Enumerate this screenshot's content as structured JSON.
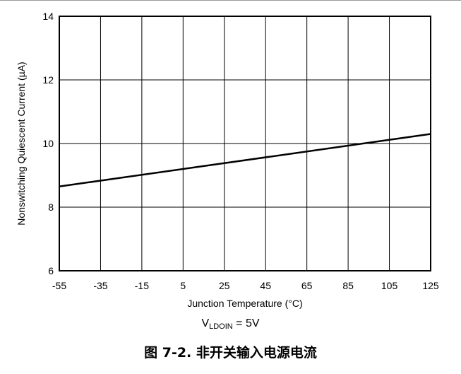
{
  "chart_data": {
    "type": "line",
    "xlabel": "Junction Temperature (°C)",
    "ylabel": "Nonswitching Quiescent Current (µA)",
    "xlim": [
      -55,
      125
    ],
    "ylim": [
      6,
      14
    ],
    "x_ticks": [
      -55,
      -35,
      -15,
      5,
      25,
      45,
      65,
      85,
      105,
      125
    ],
    "y_ticks": [
      6,
      8,
      10,
      12,
      14
    ],
    "grid": true,
    "line_color": "#000000",
    "series": [
      {
        "x": [
          -55,
          125
        ],
        "y": [
          8.65,
          10.3
        ]
      }
    ],
    "condition": {
      "prefix": "V",
      "subscript": "LDOIN",
      "suffix": " = 5V"
    }
  },
  "caption": "图 7-2. 非开关输入电源电流"
}
